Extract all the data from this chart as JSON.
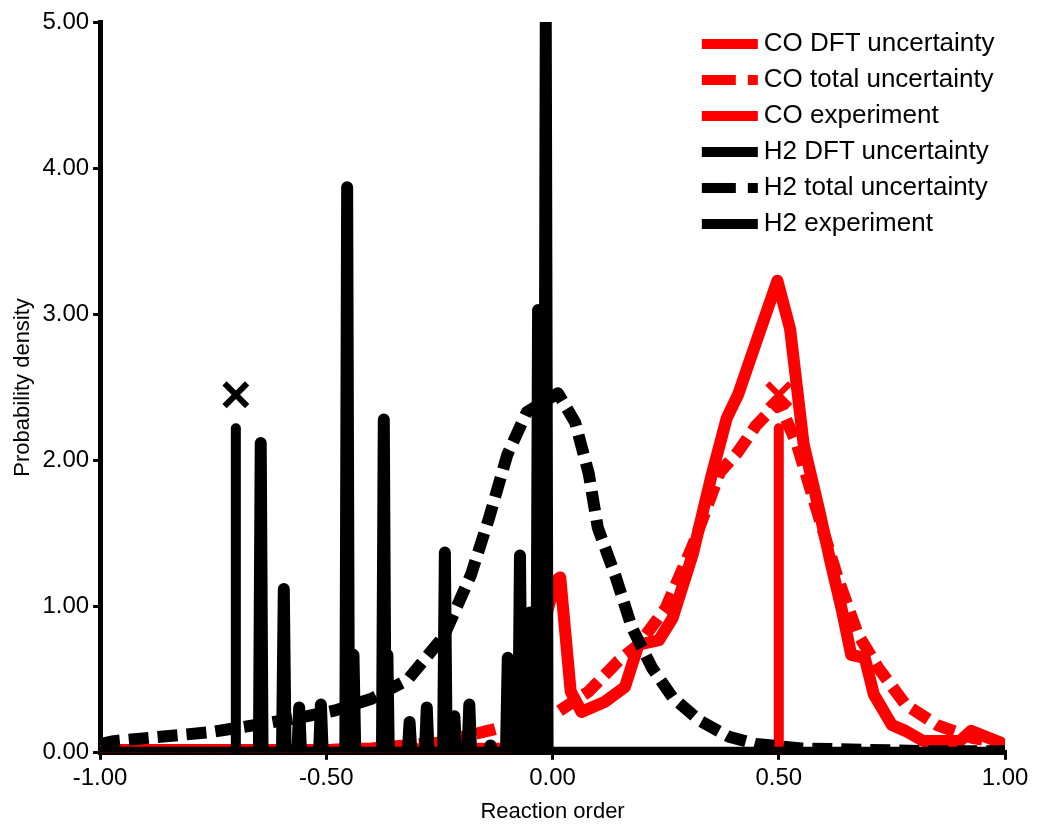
{
  "chart_data": {
    "type": "line",
    "xlabel": "Reaction order",
    "ylabel": "Probability density",
    "xlim": [
      -1,
      1
    ],
    "xticks": [
      {
        "value": -1,
        "label": "-1.00"
      },
      {
        "value": -0.5,
        "label": "-0.50"
      },
      {
        "value": 0,
        "label": "0.00"
      },
      {
        "value": 0.5,
        "label": "0.50"
      },
      {
        "value": 1,
        "label": "1.00"
      }
    ],
    "ylim": [
      0,
      5
    ],
    "yticks": [
      {
        "value": 0,
        "label": "0.00"
      },
      {
        "value": 1,
        "label": "1.00"
      },
      {
        "value": 2,
        "label": "2.00"
      },
      {
        "value": 3,
        "label": "3.00"
      },
      {
        "value": 4,
        "label": "4.00"
      },
      {
        "value": 5,
        "label": "5.00"
      }
    ],
    "grid": false,
    "legend": "top right",
    "line_style": "solid",
    "series": [
      {
        "name": "CO DFT uncertainty",
        "color": "#ff0000",
        "x": [
          -1.0,
          -0.5,
          -0.1,
          -0.01,
          0.008,
          0.017,
          0.04,
          0.064,
          0.116,
          0.16,
          0.19,
          0.235,
          0.265,
          0.31,
          0.35,
          0.385,
          0.41,
          0.46,
          0.497,
          0.525,
          0.555,
          0.59,
          0.614,
          0.64,
          0.66,
          0.69,
          0.71,
          0.75,
          0.78,
          0.82,
          0.9,
          0.925,
          0.99
        ],
        "values": [
          0.02,
          0.02,
          0.03,
          null,
          1.18,
          1.2,
          0.42,
          0.28,
          0.35,
          0.45,
          0.74,
          0.77,
          0.92,
          1.36,
          1.88,
          2.29,
          2.45,
          2.9,
          3.23,
          2.9,
          2.11,
          1.65,
          1.31,
          0.97,
          0.67,
          0.65,
          0.4,
          0.19,
          0.15,
          0.08,
          0.08,
          0.15,
          0.07
        ]
      },
      {
        "name": "CO total uncertainty",
        "line_style": "dashed",
        "color": "#ff0000",
        "x": [
          -1.0,
          -0.6,
          -0.4,
          -0.25,
          -0.13,
          0.012,
          0.08,
          0.146,
          0.19,
          0.25,
          0.31,
          0.37,
          0.41,
          0.45,
          0.5,
          0.54,
          0.585,
          0.63,
          0.675,
          0.72,
          0.78,
          0.85,
          0.93,
          0.99
        ],
        "values": [
          0.0,
          0.01,
          0.03,
          0.07,
          0.16,
          0.28,
          0.42,
          0.63,
          0.74,
          0.99,
          1.42,
          1.92,
          2.06,
          2.24,
          2.4,
          2.11,
          1.65,
          1.2,
          0.81,
          0.58,
          0.33,
          0.19,
          0.1,
          0.07
        ]
      },
      {
        "name": "CO experiment",
        "color": "#ff0000",
        "x": [
          0.5,
          0.5
        ],
        "values": [
          0,
          2.22
        ]
      },
      {
        "name": "H2 DFT uncertainty",
        "color": "#000000",
        "x": [
          -1.0,
          -0.649,
          -0.645,
          -0.641,
          -0.598,
          -0.594,
          -0.59,
          -0.564,
          -0.56,
          -0.556,
          -0.516,
          -0.512,
          -0.508,
          -0.458,
          -0.454,
          -0.45,
          -0.444,
          -0.44,
          -0.436,
          -0.377,
          -0.373,
          -0.369,
          -0.368,
          -0.365,
          -0.362,
          -0.32,
          -0.316,
          -0.312,
          -0.282,
          -0.278,
          -0.274,
          -0.242,
          -0.238,
          -0.234,
          -0.221,
          -0.217,
          -0.213,
          -0.188,
          -0.184,
          -0.18,
          -0.141,
          -0.137,
          -0.133,
          -0.103,
          -0.099,
          -0.095,
          -0.076,
          -0.072,
          -0.068,
          -0.054,
          -0.05,
          -0.046,
          -0.036,
          -0.032,
          -0.028,
          -0.019,
          -0.015,
          -0.011,
          1.0
        ],
        "values": [
          0,
          0,
          2.12,
          0,
          0,
          1.12,
          0,
          0,
          0.31,
          0,
          0,
          0.33,
          0,
          0,
          3.87,
          0,
          0,
          0.67,
          0,
          0,
          2.28,
          0,
          0,
          0.67,
          0,
          0,
          0.21,
          0,
          0,
          0.31,
          0,
          0,
          1.37,
          0,
          0,
          0.25,
          0,
          0,
          0.33,
          0,
          0,
          0.05,
          0,
          0,
          0.65,
          0,
          0,
          1.35,
          0,
          0,
          0.96,
          0,
          0,
          3.03,
          0,
          0,
          5.0,
          0,
          0
        ]
      },
      {
        "name": "H2 total uncertainty",
        "line_style": "dashed",
        "color": "#000000",
        "x": [
          -1.0,
          -0.97,
          -0.76,
          -0.656,
          -0.56,
          -0.48,
          -0.4,
          -0.32,
          -0.24,
          -0.18,
          -0.14,
          -0.1,
          -0.057,
          0.012,
          0.05,
          0.08,
          0.1,
          0.14,
          0.175,
          0.22,
          0.265,
          0.325,
          0.39,
          0.45,
          0.55,
          0.7,
          0.85,
          1.0
        ],
        "values": [
          0.06,
          0.08,
          0.14,
          0.19,
          0.24,
          0.29,
          0.37,
          0.5,
          0.8,
          1.22,
          1.61,
          2.04,
          2.33,
          2.46,
          2.26,
          1.91,
          1.54,
          1.2,
          0.86,
          0.58,
          0.38,
          0.22,
          0.11,
          0.06,
          0.03,
          0.02,
          0.01,
          0.01
        ]
      },
      {
        "name": "H2 experiment",
        "color": "#000000",
        "x": [
          -0.7,
          -0.7
        ],
        "values": [
          0,
          2.22
        ]
      },
      {
        "type": "scatter",
        "marker": "cross",
        "color": "#ff0000",
        "x": [
          0.5
        ],
        "values": [
          2.45
        ]
      },
      {
        "type": "scatter",
        "marker": "cross",
        "color": "#000000",
        "x": [
          -0.7
        ],
        "values": [
          2.45
        ]
      }
    ]
  }
}
